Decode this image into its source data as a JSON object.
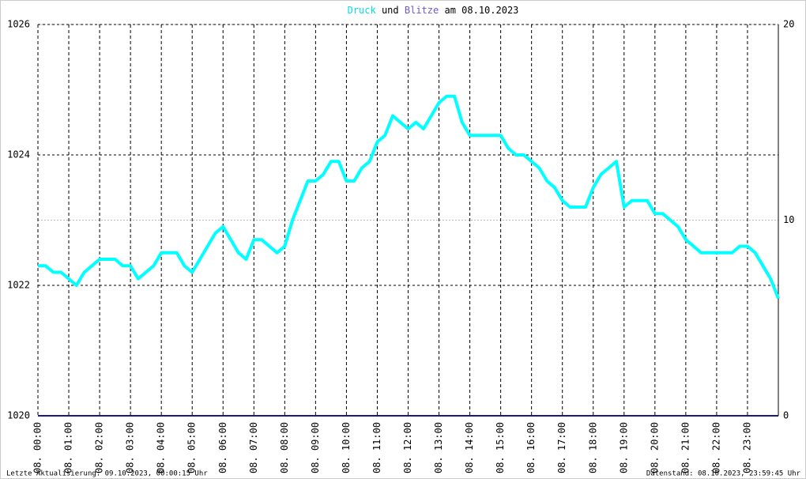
{
  "chart_data": {
    "type": "line",
    "title_words": [
      "und",
      "am 08.10.2023"
    ],
    "footer_left": "Letzte Aktualisierung: 09.10.2023, 00:00:15 Uhr",
    "footer_right": "Datenstand: 08.10.2023, 23:59:45 Uhr",
    "x": [
      0,
      0.25,
      0.5,
      0.75,
      1,
      1.25,
      1.5,
      1.75,
      2,
      2.25,
      2.5,
      2.75,
      3,
      3.25,
      3.5,
      3.75,
      4,
      4.25,
      4.5,
      4.75,
      5,
      5.25,
      5.5,
      5.75,
      6,
      6.25,
      6.5,
      6.75,
      7,
      7.25,
      7.5,
      7.75,
      8,
      8.25,
      8.5,
      8.75,
      9,
      9.25,
      9.5,
      9.75,
      10,
      10.25,
      10.5,
      10.75,
      11,
      11.25,
      11.5,
      11.75,
      12,
      12.25,
      12.5,
      12.75,
      13,
      13.25,
      13.5,
      13.75,
      14,
      14.25,
      14.5,
      14.75,
      15,
      15.25,
      15.5,
      15.75,
      16,
      16.25,
      16.5,
      16.75,
      17,
      17.25,
      17.5,
      17.75,
      18,
      18.25,
      18.5,
      18.75,
      19,
      19.25,
      19.5,
      19.75,
      20,
      20.25,
      20.5,
      20.75,
      21,
      21.25,
      21.5,
      21.75,
      22,
      22.25,
      22.5,
      22.75,
      23,
      23.25,
      23.5,
      23.75,
      24
    ],
    "series": [
      {
        "name": "Druck",
        "color": "#00ffff",
        "axis": "y",
        "values": [
          1022.3,
          1022.3,
          1022.2,
          1022.2,
          1022.1,
          1022.0,
          1022.2,
          1022.3,
          1022.4,
          1022.4,
          1022.4,
          1022.3,
          1022.3,
          1022.1,
          1022.2,
          1022.3,
          1022.5,
          1022.5,
          1022.5,
          1022.3,
          1022.2,
          1022.4,
          1022.6,
          1022.8,
          1022.9,
          1022.7,
          1022.5,
          1022.4,
          1022.7,
          1022.7,
          1022.6,
          1022.5,
          1022.6,
          1023.0,
          1023.3,
          1023.6,
          1023.6,
          1023.7,
          1023.9,
          1023.9,
          1023.6,
          1023.6,
          1023.8,
          1023.9,
          1024.2,
          1024.3,
          1024.6,
          1024.5,
          1024.4,
          1024.5,
          1024.4,
          1024.6,
          1024.8,
          1024.9,
          1024.9,
          1024.5,
          1024.3,
          1024.3,
          1024.3,
          1024.3,
          1024.3,
          1024.1,
          1024.0,
          1024.0,
          1023.9,
          1023.8,
          1023.6,
          1023.5,
          1023.3,
          1023.2,
          1023.2,
          1023.2,
          1023.5,
          1023.7,
          1023.8,
          1023.9,
          1023.2,
          1023.3,
          1023.3,
          1023.3,
          1023.1,
          1023.1,
          1023.0,
          1022.9,
          1022.7,
          1022.6,
          1022.5,
          1022.5,
          1022.5,
          1022.5,
          1022.5,
          1022.6,
          1022.6,
          1022.5,
          1022.3,
          1022.1,
          1021.8
        ]
      },
      {
        "name": "Blitze",
        "color": "#1a1a7a",
        "axis": "y2",
        "values": [
          0,
          0,
          0,
          0,
          0,
          0,
          0,
          0,
          0,
          0,
          0,
          0,
          0,
          0,
          0,
          0,
          0,
          0,
          0,
          0,
          0,
          0,
          0,
          0,
          0,
          0,
          0,
          0,
          0,
          0,
          0,
          0,
          0,
          0,
          0,
          0,
          0,
          0,
          0,
          0,
          0,
          0,
          0,
          0,
          0,
          0,
          0,
          0,
          0,
          0,
          0,
          0,
          0,
          0,
          0,
          0,
          0,
          0,
          0,
          0,
          0,
          0,
          0,
          0,
          0,
          0,
          0,
          0,
          0,
          0,
          0,
          0,
          0,
          0,
          0,
          0,
          0,
          0,
          0,
          0,
          0,
          0,
          0,
          0,
          0,
          0,
          0,
          0,
          0,
          0,
          0,
          0,
          0,
          0,
          0,
          0,
          0
        ]
      }
    ],
    "title_colors": [
      "#00e0e0",
      "#6a5acd"
    ],
    "xlim": [
      0,
      24
    ],
    "xticks": [
      {
        "value": 0,
        "label": "08. 00:00"
      },
      {
        "value": 1,
        "label": "08. 01:00"
      },
      {
        "value": 2,
        "label": "08. 02:00"
      },
      {
        "value": 3,
        "label": "08. 03:00"
      },
      {
        "value": 4,
        "label": "08. 04:00"
      },
      {
        "value": 5,
        "label": "08. 05:00"
      },
      {
        "value": 6,
        "label": "08. 06:00"
      },
      {
        "value": 7,
        "label": "08. 07:00"
      },
      {
        "value": 8,
        "label": "08. 08:00"
      },
      {
        "value": 9,
        "label": "08. 09:00"
      },
      {
        "value": 10,
        "label": "08. 10:00"
      },
      {
        "value": 11,
        "label": "08. 11:00"
      },
      {
        "value": 12,
        "label": "08. 12:00"
      },
      {
        "value": 13,
        "label": "08. 13:00"
      },
      {
        "value": 14,
        "label": "08. 14:00"
      },
      {
        "value": 15,
        "label": "08. 15:00"
      },
      {
        "value": 16,
        "label": "08. 16:00"
      },
      {
        "value": 17,
        "label": "08. 17:00"
      },
      {
        "value": 18,
        "label": "08. 18:00"
      },
      {
        "value": 19,
        "label": "08. 19:00"
      },
      {
        "value": 20,
        "label": "08. 20:00"
      },
      {
        "value": 21,
        "label": "08. 21:00"
      },
      {
        "value": 22,
        "label": "08. 22:00"
      },
      {
        "value": 23,
        "label": "08. 23:00"
      }
    ],
    "ylim": [
      1020,
      1026
    ],
    "yticks": [
      1020,
      1022,
      1024,
      1026
    ],
    "y2lim": [
      0,
      20
    ],
    "y2ticks": [
      0,
      10,
      20
    ],
    "grid": true
  }
}
